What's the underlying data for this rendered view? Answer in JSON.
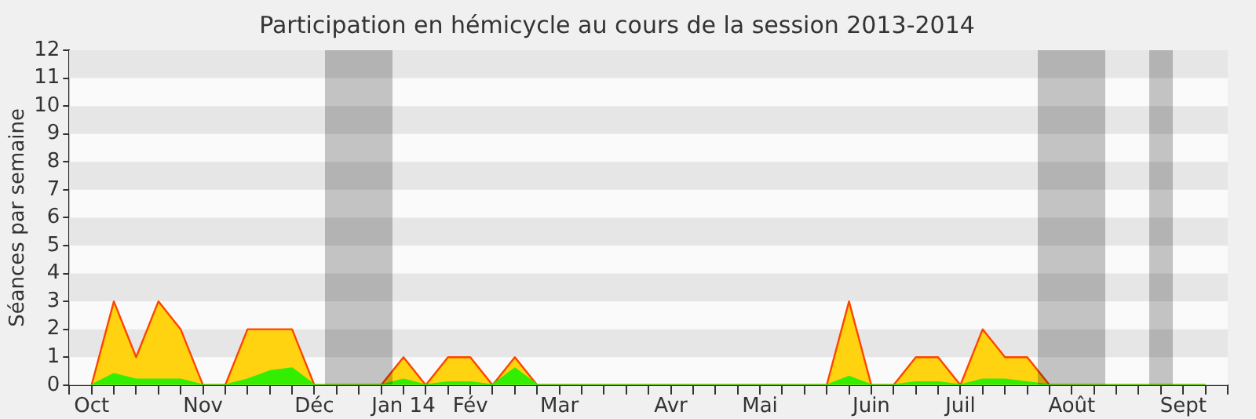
{
  "chart_data": {
    "type": "area",
    "title": "Participation en hémicycle au cours de la session 2013-2014",
    "ylabel": "Séances par semaine",
    "categories": [
      null,
      "Oct",
      null,
      null,
      null,
      null,
      "Nov",
      null,
      null,
      null,
      null,
      "Déc",
      null,
      null,
      null,
      "Jan 14",
      null,
      null,
      "Fév",
      null,
      null,
      null,
      "Mar",
      null,
      null,
      null,
      null,
      "Avr",
      null,
      null,
      null,
      "Mai",
      null,
      null,
      null,
      null,
      "Juin",
      null,
      null,
      null,
      "Juil",
      null,
      null,
      null,
      null,
      "Août",
      null,
      null,
      null,
      null,
      "Sept",
      null,
      null
    ],
    "series": [
      {
        "color": "#ffd30f",
        "values": [
          null,
          0,
          3,
          1,
          3,
          2,
          0,
          0,
          2,
          2,
          2,
          0,
          0,
          0,
          0,
          1,
          0,
          1,
          1,
          0,
          1,
          0,
          0,
          0,
          0,
          0,
          0,
          0,
          0,
          0,
          0,
          0,
          0,
          0,
          0,
          3,
          0,
          0,
          1,
          1,
          0,
          2,
          1,
          1,
          0,
          0,
          0,
          0,
          0,
          0,
          0,
          0,
          null
        ]
      },
      {
        "color": "#33ee00",
        "values": [
          null,
          0,
          0.4,
          0.2,
          0.2,
          0.2,
          0,
          0,
          0.2,
          0.5,
          0.6,
          0,
          0,
          0,
          0,
          0.2,
          0,
          0.1,
          0.1,
          0,
          0.6,
          0,
          0,
          0,
          0,
          0,
          0,
          0,
          0,
          0,
          0,
          0,
          0,
          0,
          0,
          0.3,
          0,
          0,
          0.1,
          0.1,
          0,
          0.2,
          0.2,
          0.1,
          0,
          0,
          0,
          0,
          0,
          0,
          0,
          0,
          null
        ]
      }
    ],
    "ylim": [
      0,
      12
    ],
    "yticks": [
      0,
      1,
      2,
      3,
      4,
      5,
      6,
      7,
      8,
      9,
      10,
      11,
      12
    ],
    "legend": false,
    "marker": "none",
    "line_style": "solid"
  }
}
